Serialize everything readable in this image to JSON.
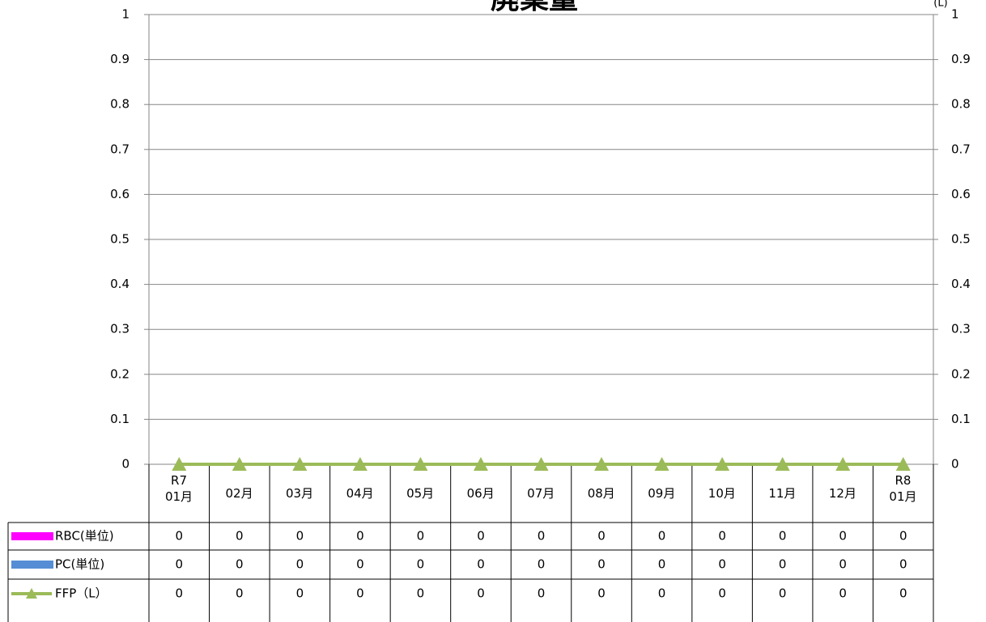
{
  "chart_data": {
    "type": "bar",
    "title": "廃棄量",
    "y2_label": "(L)",
    "categories": [
      "R7\n01月",
      "02月",
      "03月",
      "04月",
      "05月",
      "06月",
      "07月",
      "08月",
      "09月",
      "10月",
      "11月",
      "12月",
      "R8\n01月"
    ],
    "series": [
      {
        "name": "RBC(単位)",
        "color": "#ff00ff",
        "type": "bar",
        "values": [
          0,
          0,
          0,
          0,
          0,
          0,
          0,
          0,
          0,
          0,
          0,
          0,
          0
        ]
      },
      {
        "name": "PC(単位)",
        "color": "#558ed5",
        "type": "bar",
        "values": [
          0,
          0,
          0,
          0,
          0,
          0,
          0,
          0,
          0,
          0,
          0,
          0,
          0
        ]
      },
      {
        "name": "FFP（L）",
        "color": "#9bbb59",
        "type": "line",
        "axis": "y2",
        "values": [
          0,
          0,
          0,
          0,
          0,
          0,
          0,
          0,
          0,
          0,
          0,
          0,
          0
        ]
      }
    ],
    "ylim": [
      0,
      1
    ],
    "yticks": [
      0,
      0.1,
      0.2,
      0.3,
      0.4,
      0.5,
      0.6,
      0.7,
      0.8,
      0.9,
      1
    ],
    "y2lim": [
      0,
      1
    ],
    "y2ticks": [
      0,
      0.1,
      0.2,
      0.3,
      0.4,
      0.5,
      0.6,
      0.7,
      0.8,
      0.9,
      1
    ],
    "grid": true,
    "data_table": true
  }
}
